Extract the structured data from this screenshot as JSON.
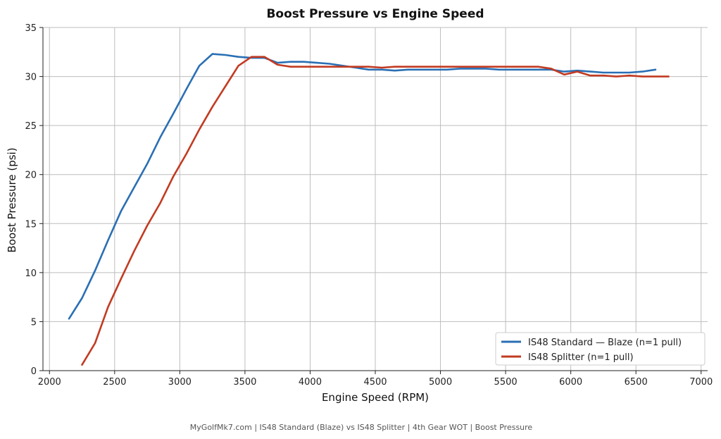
{
  "chart_data": {
    "type": "line",
    "title": "Boost Pressure vs Engine Speed",
    "xlabel": "Engine Speed (RPM)",
    "ylabel": "Boost Pressure (psi)",
    "xlim": [
      1950,
      7050
    ],
    "ylim": [
      0,
      35
    ],
    "xticks": [
      2000,
      2500,
      3000,
      3500,
      4000,
      4500,
      5000,
      5500,
      6000,
      6500,
      7000
    ],
    "yticks": [
      0,
      5,
      10,
      15,
      20,
      25,
      30,
      35
    ],
    "grid": true,
    "legend_position": "bottom-right",
    "series": [
      {
        "name": "IS48 Standard — Blaze (n=1 pull)",
        "color": "#2a6fb4",
        "x": [
          2150,
          2250,
          2350,
          2450,
          2550,
          2650,
          2750,
          2850,
          2950,
          3050,
          3150,
          3250,
          3350,
          3450,
          3550,
          3650,
          3750,
          3850,
          3950,
          4050,
          4150,
          4250,
          4350,
          4450,
          4550,
          4650,
          4750,
          4850,
          4950,
          5050,
          5150,
          5250,
          5350,
          5450,
          5550,
          5650,
          5750,
          5850,
          5950,
          6050,
          6150,
          6250,
          6350,
          6450,
          6550,
          6650
        ],
        "y": [
          5.3,
          7.4,
          10.2,
          13.3,
          16.3,
          18.7,
          21.1,
          23.8,
          26.2,
          28.7,
          31.1,
          32.3,
          32.2,
          32.0,
          31.9,
          31.9,
          31.4,
          31.5,
          31.5,
          31.4,
          31.3,
          31.1,
          30.9,
          30.7,
          30.7,
          30.6,
          30.7,
          30.7,
          30.7,
          30.7,
          30.8,
          30.8,
          30.8,
          30.7,
          30.7,
          30.7,
          30.7,
          30.7,
          30.5,
          30.6,
          30.5,
          30.4,
          30.4,
          30.4,
          30.5,
          30.7
        ]
      },
      {
        "name": "IS48 Splitter (n=1 pull)",
        "color": "#c23b22",
        "x": [
          2250,
          2350,
          2450,
          2550,
          2650,
          2750,
          2850,
          2950,
          3050,
          3150,
          3250,
          3350,
          3450,
          3550,
          3650,
          3750,
          3850,
          3950,
          4050,
          4150,
          4250,
          4350,
          4450,
          4550,
          4650,
          4750,
          4850,
          4950,
          5050,
          5150,
          5250,
          5350,
          5450,
          5550,
          5650,
          5750,
          5850,
          5950,
          6050,
          6150,
          6250,
          6350,
          6450,
          6550,
          6650,
          6750
        ],
        "y": [
          0.6,
          2.8,
          6.5,
          9.4,
          12.2,
          14.8,
          17.1,
          19.8,
          22.1,
          24.6,
          26.9,
          29.0,
          31.1,
          32.0,
          32.0,
          31.2,
          31.0,
          31.0,
          31.0,
          31.0,
          31.0,
          31.0,
          31.0,
          30.9,
          31.0,
          31.0,
          31.0,
          31.0,
          31.0,
          31.0,
          31.0,
          31.0,
          31.0,
          31.0,
          31.0,
          31.0,
          30.8,
          30.2,
          30.5,
          30.1,
          30.1,
          30.0,
          30.1,
          30.0,
          30.0,
          30.0
        ]
      }
    ]
  },
  "footer": {
    "text": "MyGolfMk7.com  |  IS48 Standard (Blaze) vs IS48 Splitter  |  4th Gear WOT  |  Boost Pressure"
  }
}
